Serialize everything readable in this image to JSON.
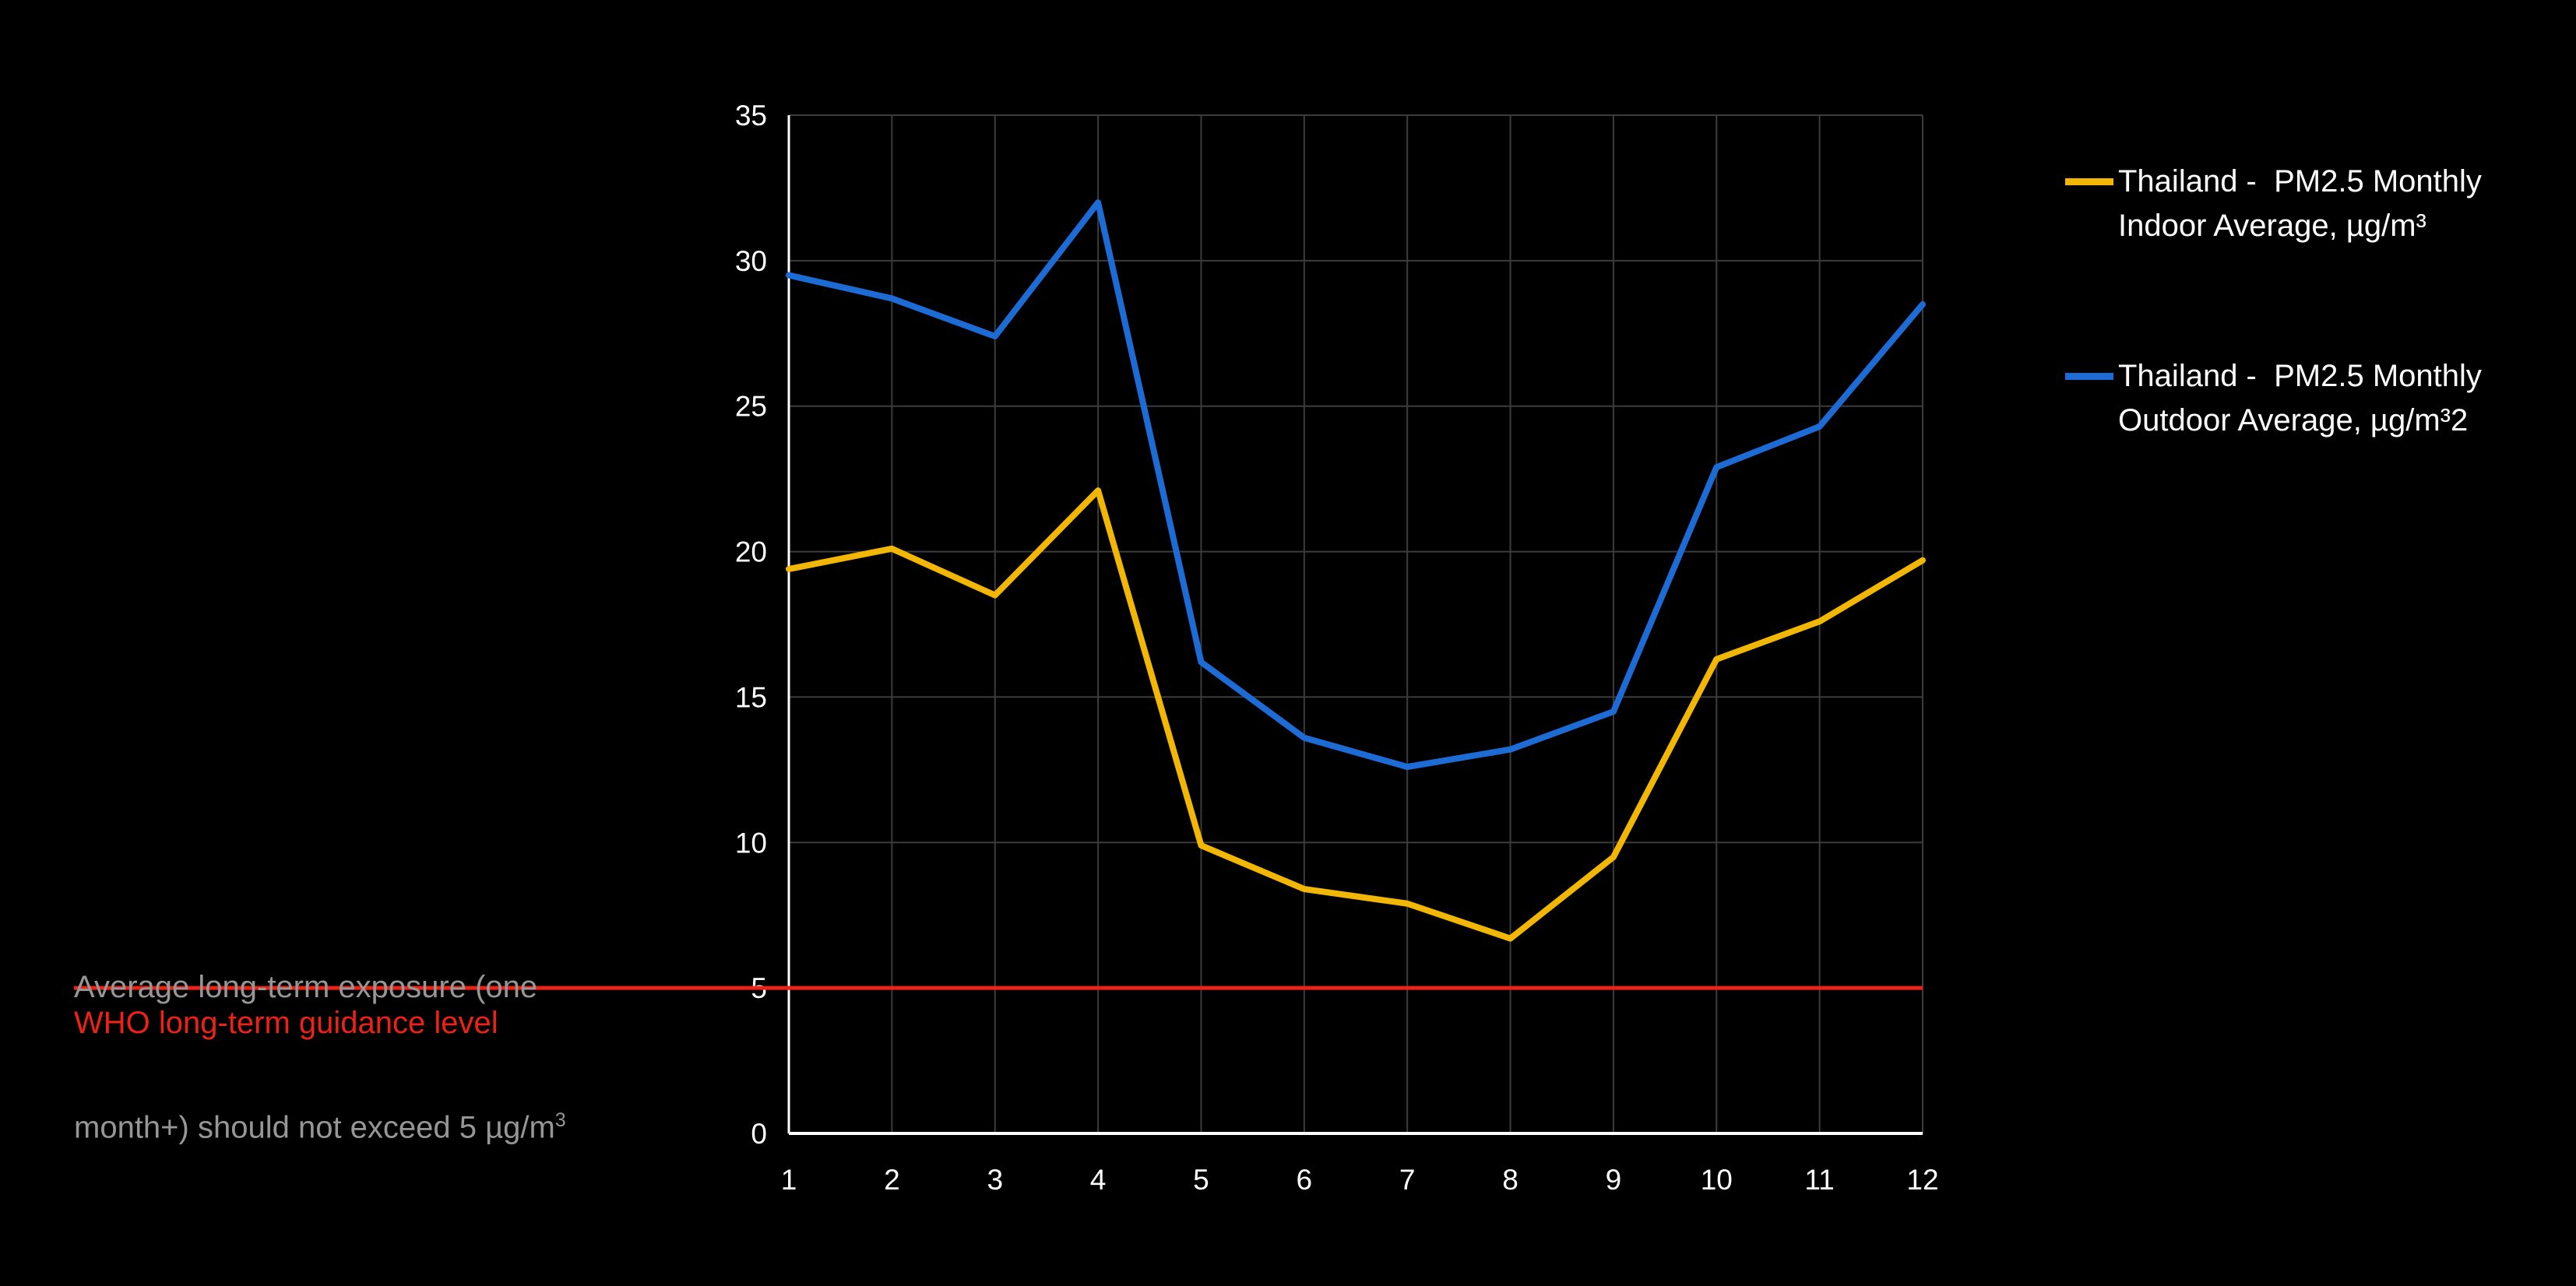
{
  "colors": {
    "background": "#000000",
    "grid": "#3C3C3C",
    "axis": "#FFFFFF",
    "tick": "#FFFFFF",
    "legend_text": "#FFFFFF",
    "indoor_series": "#F2B705",
    "outdoor_series": "#1D6BD5",
    "reference": "#ED2115",
    "annotation_text": "#969696"
  },
  "chart_data": {
    "type": "line",
    "title": "",
    "xlabel": "",
    "ylabel": "",
    "x": [
      1,
      2,
      3,
      4,
      5,
      6,
      7,
      8,
      9,
      10,
      11,
      12
    ],
    "xticks": [
      "1",
      "2",
      "3",
      "4",
      "5",
      "6",
      "7",
      "8",
      "9",
      "10",
      "11",
      "12"
    ],
    "yticks": [
      0,
      5,
      10,
      15,
      20,
      25,
      30,
      35
    ],
    "ylim": [
      0,
      35
    ],
    "grid": true,
    "legend_position": "top-right",
    "series": [
      {
        "name": "Thailand -  PM2.5 Monthly Indoor Average, µg/m³",
        "label_lines": [
          "Thailand -  PM2.5 Monthly",
          "Indoor Average, µg/m³"
        ],
        "color": "#F2B705",
        "values": [
          19.4,
          20.1,
          18.5,
          22.1,
          9.9,
          8.4,
          7.9,
          6.7,
          9.5,
          16.3,
          17.6,
          19.7
        ]
      },
      {
        "name": "Thailand -  PM2.5 Monthly Outdoor Average, µg/m³2",
        "label_lines": [
          "Thailand -  PM2.5 Monthly",
          "Outdoor Average, µg/m³2"
        ],
        "color": "#1D6BD5",
        "values": [
          29.5,
          28.7,
          27.4,
          32,
          16.2,
          13.6,
          12.6,
          13.2,
          14.5,
          22.9,
          24.3,
          28.5
        ]
      }
    ],
    "reference_line": {
      "value": 5,
      "color": "#ED2115",
      "label": "WHO long-term guidance level"
    }
  },
  "annotation": {
    "line1": "Average long-term exposure (one",
    "line2": "month+) should not exceed 5 µg/m",
    "line2_sup": "3",
    "color": "#969696"
  }
}
